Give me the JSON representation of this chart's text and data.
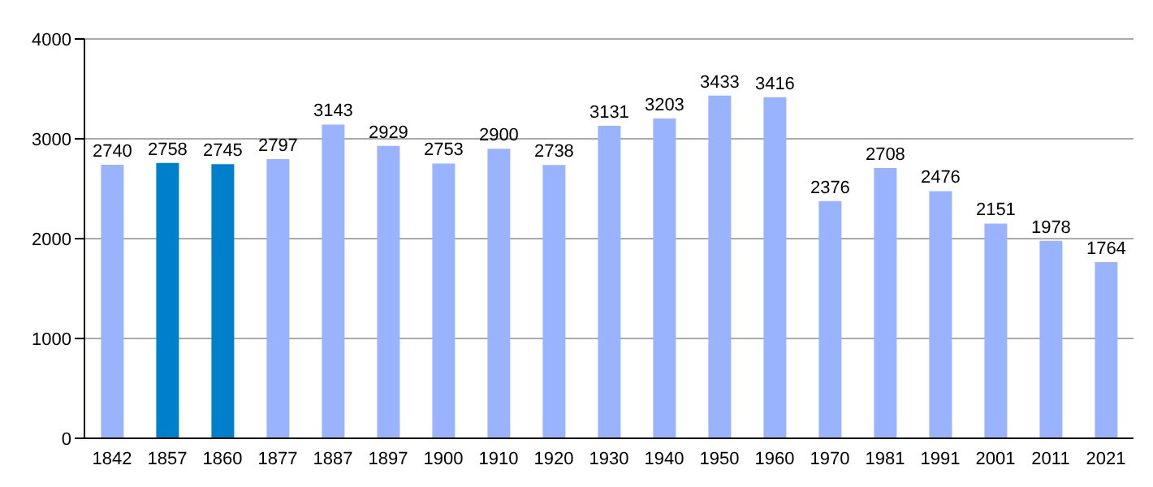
{
  "chart_data": {
    "type": "bar",
    "categories": [
      "1842",
      "1857",
      "1860",
      "1877",
      "1887",
      "1897",
      "1900",
      "1910",
      "1920",
      "1930",
      "1940",
      "1950",
      "1960",
      "1970",
      "1981",
      "1991",
      "2001",
      "2011",
      "2021"
    ],
    "values": [
      2740,
      2758,
      2745,
      2797,
      3143,
      2929,
      2753,
      2900,
      2738,
      3131,
      3203,
      3433,
      3416,
      2376,
      2708,
      2476,
      2151,
      1978,
      1764
    ],
    "colors": [
      "#99b3ff",
      "#0080cc",
      "#0080cc",
      "#99b3ff",
      "#99b3ff",
      "#99b3ff",
      "#99b3ff",
      "#99b3ff",
      "#99b3ff",
      "#99b3ff",
      "#99b3ff",
      "#99b3ff",
      "#99b3ff",
      "#99b3ff",
      "#99b3ff",
      "#99b3ff",
      "#99b3ff",
      "#99b3ff",
      "#99b3ff"
    ],
    "ylim": [
      0,
      4000
    ],
    "yticks": [
      0,
      1000,
      2000,
      3000,
      4000
    ],
    "grid": "y",
    "data_labels": true
  }
}
